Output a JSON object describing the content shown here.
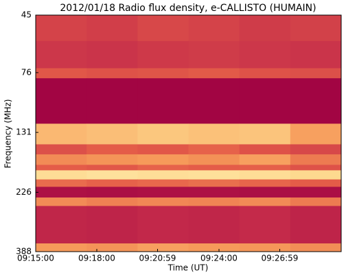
{
  "chart_data": {
    "type": "spectrogram",
    "title": "2012/01/18  Radio flux density, e-CALLISTO (HUMAIN)",
    "xlabel": "Time (UT)",
    "ylabel": "Frequency (MHz)",
    "xlim": [
      33300,
      34200
    ],
    "xticks": [
      {
        "value": 33300,
        "label": "09:15:00"
      },
      {
        "value": 33480,
        "label": "09:18:00"
      },
      {
        "value": 33659,
        "label": "09:20:59"
      },
      {
        "value": 33840,
        "label": "09:24:00"
      },
      {
        "value": 34019,
        "label": "09:26:59"
      }
    ],
    "ylim": [
      45,
      388
    ],
    "yticks": [
      45,
      76,
      131,
      226,
      388
    ],
    "ylog": true,
    "y_inverted": true,
    "time_edges": [
      33300,
      33450,
      33600,
      33750,
      33900,
      34050,
      34200
    ],
    "frequency_edges": [
      45,
      57,
      73,
      80,
      121,
      146,
      160,
      176,
      185,
      201,
      215,
      237,
      256,
      360,
      388
    ],
    "values": [
      [
        0.3,
        0.28,
        0.32,
        0.3,
        0.27,
        0.29
      ],
      [
        0.25,
        0.24,
        0.26,
        0.27,
        0.25,
        0.24
      ],
      [
        0.38,
        0.36,
        0.37,
        0.39,
        0.36,
        0.35
      ],
      [
        0.02,
        0.02,
        0.02,
        0.02,
        0.02,
        0.02
      ],
      [
        0.7,
        0.72,
        0.75,
        0.73,
        0.74,
        0.62
      ],
      [
        0.35,
        0.4,
        0.38,
        0.42,
        0.36,
        0.32
      ],
      [
        0.55,
        0.58,
        0.6,
        0.57,
        0.62,
        0.5
      ],
      [
        0.4,
        0.38,
        0.42,
        0.4,
        0.41,
        0.36
      ],
      [
        0.85,
        0.88,
        0.86,
        0.87,
        0.85,
        0.82
      ],
      [
        0.45,
        0.42,
        0.44,
        0.46,
        0.43,
        0.4
      ],
      [
        0.08,
        0.07,
        0.08,
        0.08,
        0.07,
        0.07
      ],
      [
        0.55,
        0.52,
        0.54,
        0.53,
        0.55,
        0.5
      ],
      [
        0.18,
        0.17,
        0.19,
        0.18,
        0.2,
        0.17
      ],
      [
        0.6,
        0.58,
        0.62,
        0.6,
        0.59,
        0.56
      ]
    ],
    "colormap": [
      "#9e0142",
      "#c42a4a",
      "#e45c48",
      "#f69a5a",
      "#fdd68a",
      "#fff2b8"
    ]
  }
}
